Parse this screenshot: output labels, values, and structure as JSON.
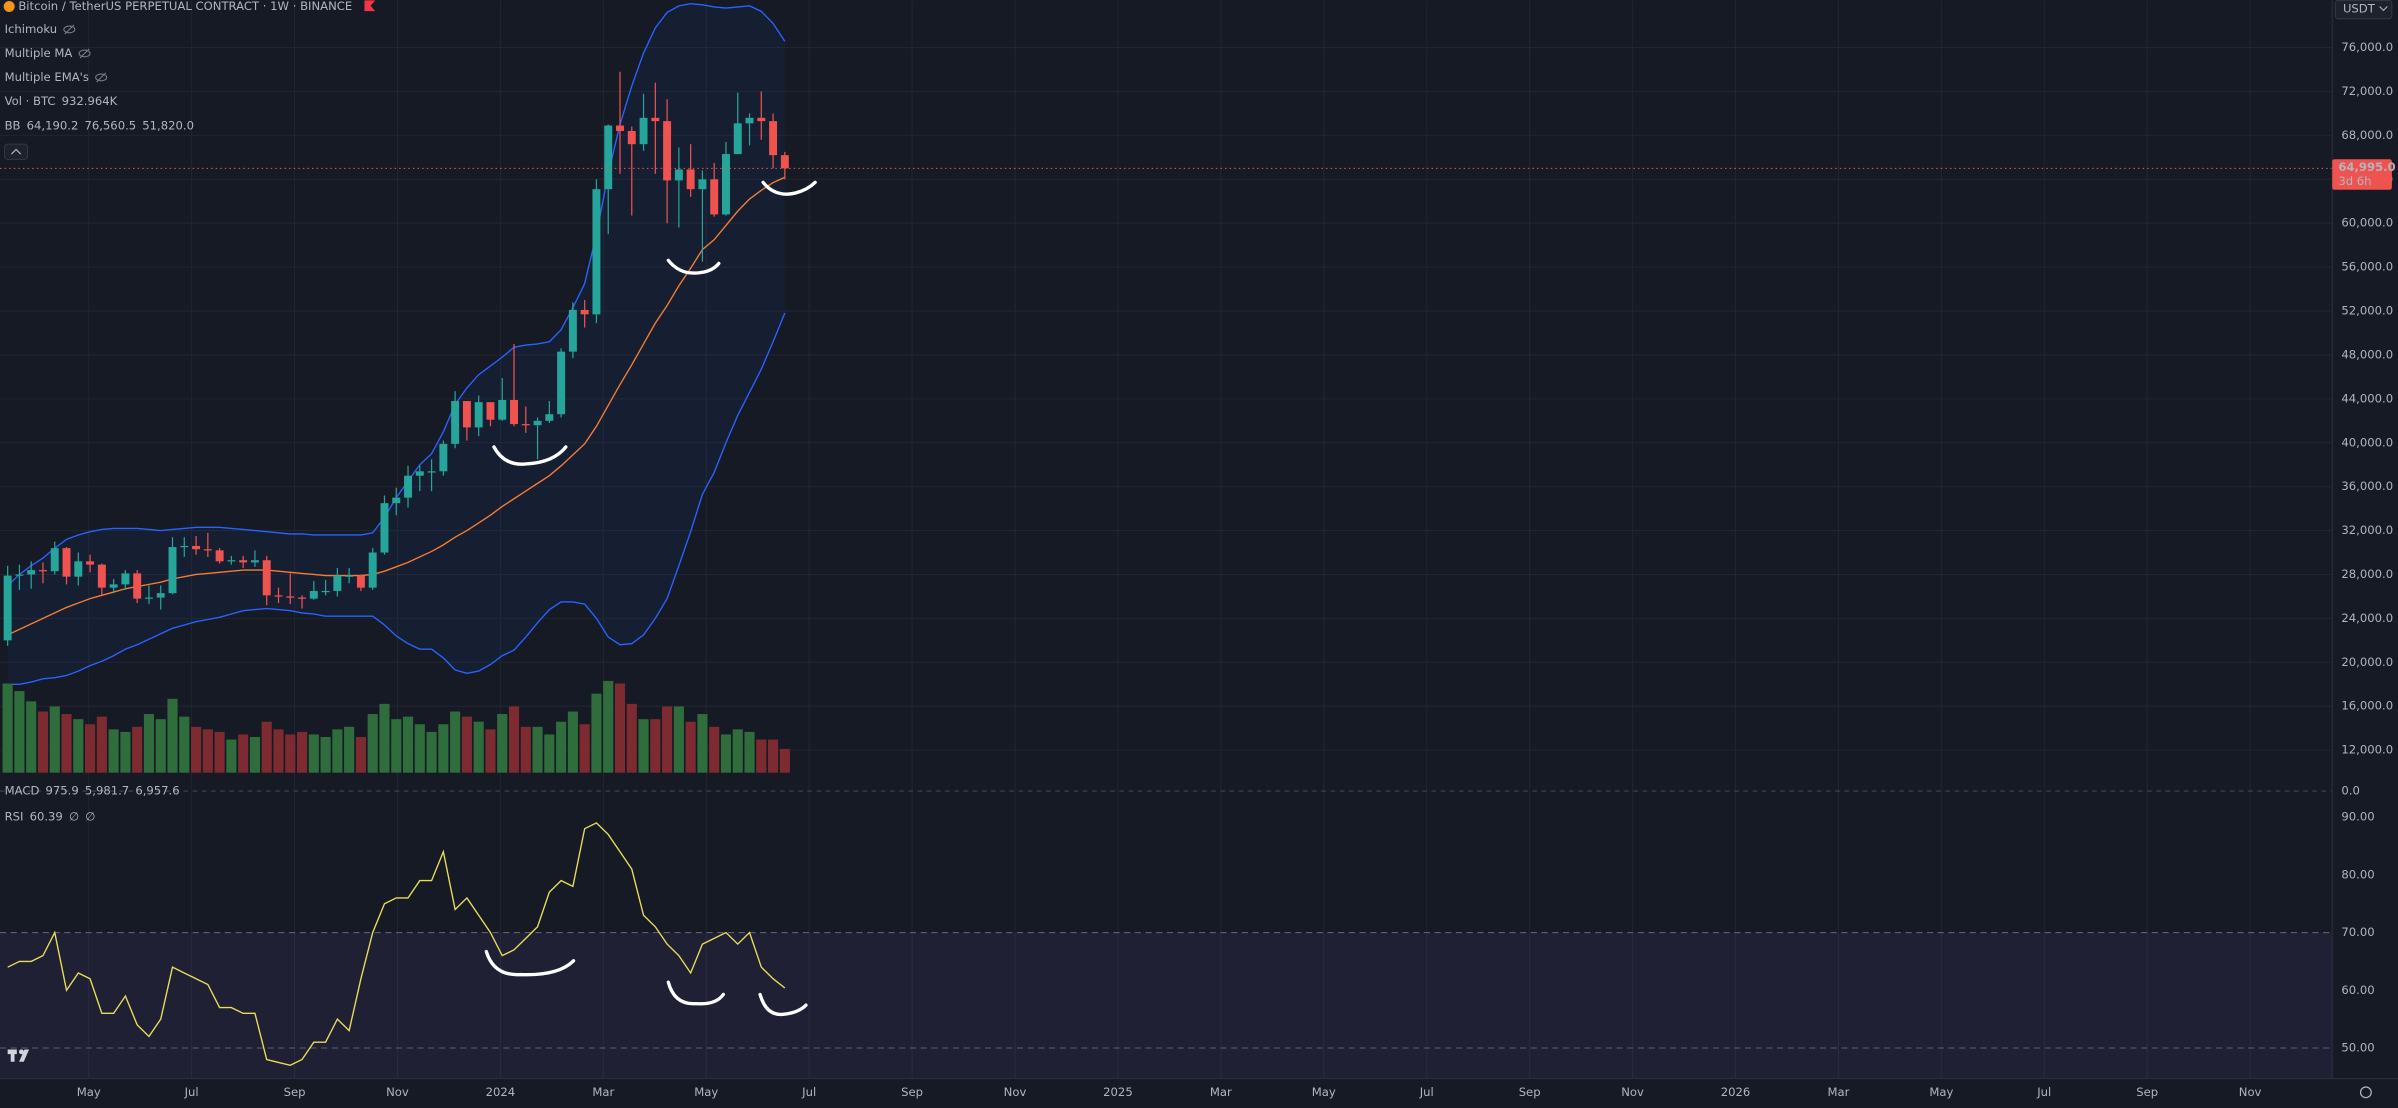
{
  "header": {
    "title": "Bitcoin / TetherUS PERPETUAL CONTRACT · 1W · BINANCE",
    "indicators": [
      "Ichimoku",
      "Multiple MA",
      "Multiple EMA's"
    ]
  },
  "chart_data": [
    {
      "type": "candlestick",
      "currency": "USDT",
      "up_color": "#26a69a",
      "down_color": "#ef5350",
      "open": [
        22000,
        27900,
        28000,
        28400,
        28300,
        30400,
        27800,
        29200,
        28900,
        26800,
        27100,
        28100,
        25800,
        25900,
        26300,
        30500,
        30600,
        30300,
        30200,
        29200,
        29300,
        29100,
        29300,
        26100,
        26000,
        25900,
        25800,
        26500,
        26500,
        27900,
        27900,
        26800,
        30000,
        34500,
        35000,
        37000,
        37400,
        37400,
        39900,
        43800,
        41400,
        43700,
        42100,
        43900,
        41700,
        41600,
        42000,
        42600,
        48300,
        52100,
        51700,
        63100,
        68900,
        68400,
        67200,
        69600,
        69300,
        63900,
        64900,
        63100,
        64000,
        60800,
        66300,
        69100,
        69600,
        69300,
        66200
      ],
      "high": [
        28800,
        28900,
        29200,
        29100,
        31000,
        30500,
        30000,
        29800,
        29000,
        27600,
        28400,
        28400,
        27000,
        27000,
        31400,
        31400,
        31500,
        31800,
        30400,
        29700,
        29700,
        30200,
        29700,
        26800,
        28100,
        26100,
        27400,
        27500,
        28600,
        28600,
        28000,
        30400,
        35200,
        35900,
        37900,
        37900,
        38500,
        40200,
        44700,
        43500,
        44300,
        43600,
        45900,
        49000,
        43300,
        42300,
        43800,
        48600,
        52800,
        53000,
        64000,
        69000,
        73800,
        68800,
        71800,
        72800,
        71300,
        66900,
        67200,
        64800,
        65500,
        67400,
        71900,
        70000,
        72000,
        70000,
        66500
      ],
      "low": [
        21500,
        26600,
        26700,
        27200,
        28000,
        27100,
        27000,
        28200,
        26100,
        26300,
        26600,
        25400,
        25300,
        24800,
        26200,
        29600,
        29800,
        29600,
        29000,
        28900,
        28600,
        28700,
        25200,
        25400,
        25300,
        24900,
        25700,
        26100,
        26000,
        27200,
        26500,
        26600,
        29800,
        33400,
        34100,
        35600,
        35600,
        37000,
        39500,
        40200,
        40600,
        41500,
        42000,
        41500,
        40900,
        38500,
        41800,
        42300,
        47700,
        50500,
        50900,
        59000,
        64500,
        60700,
        66600,
        64500,
        60000,
        59600,
        62400,
        56500,
        60600,
        60700,
        66300,
        67100,
        67600,
        65000,
        64000
      ],
      "close": [
        27900,
        28000,
        28400,
        28300,
        30400,
        27800,
        29200,
        28900,
        26800,
        27100,
        28100,
        25800,
        25900,
        26300,
        30500,
        30600,
        30300,
        30200,
        29200,
        29300,
        29100,
        29300,
        26100,
        26000,
        25900,
        25800,
        26500,
        26500,
        27900,
        27900,
        26800,
        30000,
        34500,
        35000,
        37000,
        37400,
        37400,
        39900,
        43800,
        41400,
        43700,
        42100,
        43900,
        41700,
        41600,
        42000,
        42600,
        48300,
        52100,
        51700,
        63100,
        68900,
        68400,
        67200,
        69600,
        69300,
        63900,
        64900,
        63100,
        64000,
        60800,
        66300,
        69100,
        69600,
        69300,
        66200,
        64995
      ],
      "close_label": "64,995.0",
      "countdown": "3d 6h",
      "ylim": [
        10000,
        80300
      ],
      "yticks": [
        {
          "value": 76000,
          "label": "76,000.0"
        },
        {
          "value": 72000,
          "label": "72,000.0"
        },
        {
          "value": 68000,
          "label": "68,000.0"
        },
        {
          "value": 64000,
          "label": "64,000.0"
        },
        {
          "value": 60000,
          "label": "60,000.0"
        },
        {
          "value": 56000,
          "label": "56,000.0"
        },
        {
          "value": 52000,
          "label": "52,000.0"
        },
        {
          "value": 48000,
          "label": "48,000.0"
        },
        {
          "value": 44000,
          "label": "44,000.0"
        },
        {
          "value": 40000,
          "label": "40,000.0"
        },
        {
          "value": 36000,
          "label": "36,000.0"
        },
        {
          "value": 32000,
          "label": "32,000.0"
        },
        {
          "value": 28000,
          "label": "28,000.0"
        },
        {
          "value": 24000,
          "label": "24,000.0"
        },
        {
          "value": 20000,
          "label": "20,000.0"
        },
        {
          "value": 16000,
          "label": "16,000.0"
        },
        {
          "value": 12000,
          "label": "12,000.0"
        }
      ],
      "xticks": [
        "May",
        "Jul",
        "Sep",
        "Nov",
        "2024",
        "Mar",
        "May",
        "Jul",
        "Sep",
        "Nov",
        "2025",
        "Mar",
        "May",
        "Jul",
        "Sep",
        "Nov",
        "2026",
        "Mar",
        "May",
        "Jul",
        "Sep",
        "Nov"
      ],
      "grid": true,
      "volume": {
        "name": "Vol · BTC",
        "up_color": "#2f6e3c",
        "down_color": "#7d2b31",
        "values": [
          3500000,
          3200000,
          2800000,
          2400000,
          2600000,
          2300000,
          2100000,
          1900000,
          2200000,
          1700000,
          1600000,
          1800000,
          2300000,
          2100000,
          2900000,
          2200000,
          1800000,
          1700000,
          1600000,
          1300000,
          1500000,
          1400000,
          2000000,
          1700000,
          1500000,
          1600000,
          1500000,
          1400000,
          1700000,
          1800000,
          1400000,
          2300000,
          2700000,
          2100000,
          2200000,
          1900000,
          1600000,
          1900000,
          2400000,
          2200000,
          2000000,
          1700000,
          2300000,
          2600000,
          1800000,
          1800000,
          1500000,
          2000000,
          2400000,
          1900000,
          3100000,
          3600000,
          3500000,
          2700000,
          2100000,
          2100000,
          2600000,
          2600000,
          2000000,
          2300000,
          1800000,
          1500000,
          1700000,
          1600000,
          1300000,
          1300000,
          932964
        ],
        "value_label": "932.964K"
      },
      "bollinger": {
        "name": "BB",
        "series": [
          {
            "color": "#f57c32",
            "value_label": "64,190.2",
            "values": [
              22500,
              23000,
              23500,
              24000,
              24500,
              25000,
              25400,
              25800,
              26100,
              26400,
              26700,
              26900,
              27100,
              27300,
              27600,
              27800,
              28000,
              28100,
              28200,
              28300,
              28400,
              28400,
              28400,
              28300,
              28200,
              28100,
              28000,
              27900,
              27900,
              27900,
              27900,
              28000,
              28300,
              28700,
              29100,
              29600,
              30100,
              30700,
              31400,
              32000,
              32700,
              33400,
              34200,
              34900,
              35600,
              36300,
              37000,
              37900,
              38900,
              39900,
              41500,
              43400,
              45300,
              47100,
              49000,
              50900,
              52500,
              54300,
              55900,
              57600,
              58500,
              59800,
              61100,
              62200,
              63000,
              63700,
              64190.2
            ]
          },
          {
            "color": "#2962ff",
            "value_label": "76,560.5",
            "values": [
              27000,
              28000,
              28800,
              29500,
              30400,
              31200,
              31600,
              31900,
              32100,
              32200,
              32200,
              32200,
              32100,
              32000,
              32100,
              32200,
              32300,
              32300,
              32300,
              32200,
              32100,
              32000,
              31900,
              31800,
              31700,
              31700,
              31600,
              31600,
              31600,
              31600,
              31600,
              31800,
              33200,
              35000,
              36500,
              38000,
              39000,
              41000,
              43500,
              45000,
              46200,
              47000,
              47800,
              48700,
              48900,
              49000,
              49200,
              50300,
              52300,
              54500,
              59000,
              64500,
              69000,
              72500,
              75500,
              77800,
              79200,
              79800,
              80000,
              79900,
              79700,
              79600,
              79700,
              79800,
              79300,
              78200,
              76560.5
            ]
          },
          {
            "color": "#2962ff",
            "value_label": "51,820.0",
            "values": [
              18000,
              18000,
              18200,
              18500,
              18600,
              18800,
              19200,
              19700,
              20100,
              20600,
              21200,
              21600,
              22100,
              22600,
              23100,
              23400,
              23700,
              23900,
              24100,
              24400,
              24700,
              24800,
              24900,
              24800,
              24700,
              24500,
              24400,
              24200,
              24200,
              24200,
              24200,
              24200,
              23400,
              22400,
              21700,
              21200,
              21200,
              20400,
              19300,
              19000,
              19200,
              19800,
              20600,
              21100,
              22300,
              23600,
              24800,
              25500,
              25500,
              25300,
              24000,
              22300,
              21600,
              21700,
              22500,
              24000,
              25800,
              28800,
              31900,
              35300,
              37300,
              40000,
              42500,
              44600,
              46700,
              49200,
              51820
            ]
          }
        ]
      },
      "macd": {
        "name": "MACD",
        "readouts": [
          "975.9",
          "5,981.7",
          "6,957.6"
        ],
        "readout_colors": [
          "#2962ff",
          "#26a69a",
          "#ef5350"
        ],
        "yticks": [
          {
            "value": 0,
            "label": "0.0"
          }
        ]
      }
    },
    {
      "type": "line",
      "name": "RSI",
      "color": "#e8dc5a",
      "values": [
        64,
        65,
        65,
        66,
        70,
        60,
        63,
        62,
        56,
        56,
        59,
        54,
        52,
        55,
        64,
        63,
        62,
        61,
        57,
        57,
        56,
        56,
        48,
        47.5,
        47,
        48,
        51,
        51,
        55,
        53,
        62,
        70,
        75,
        76,
        76,
        79,
        79,
        84,
        74,
        76,
        73,
        70,
        66,
        67,
        69,
        71,
        77,
        79,
        78,
        88,
        89,
        87,
        84,
        81,
        73,
        71,
        68,
        66,
        63,
        68,
        69,
        70,
        68,
        70,
        64,
        62,
        60.39
      ],
      "readouts": [
        "∅",
        "∅"
      ],
      "bands": [
        70,
        50,
        30
      ],
      "ylim": [
        44.7,
        92.4
      ],
      "yticks": [
        {
          "value": 90,
          "label": "90.00"
        },
        {
          "value": 80,
          "label": "80.00"
        },
        {
          "value": 70,
          "label": "70.00"
        },
        {
          "value": 60,
          "label": "60.00"
        },
        {
          "value": 50,
          "label": "50.00"
        }
      ]
    }
  ]
}
